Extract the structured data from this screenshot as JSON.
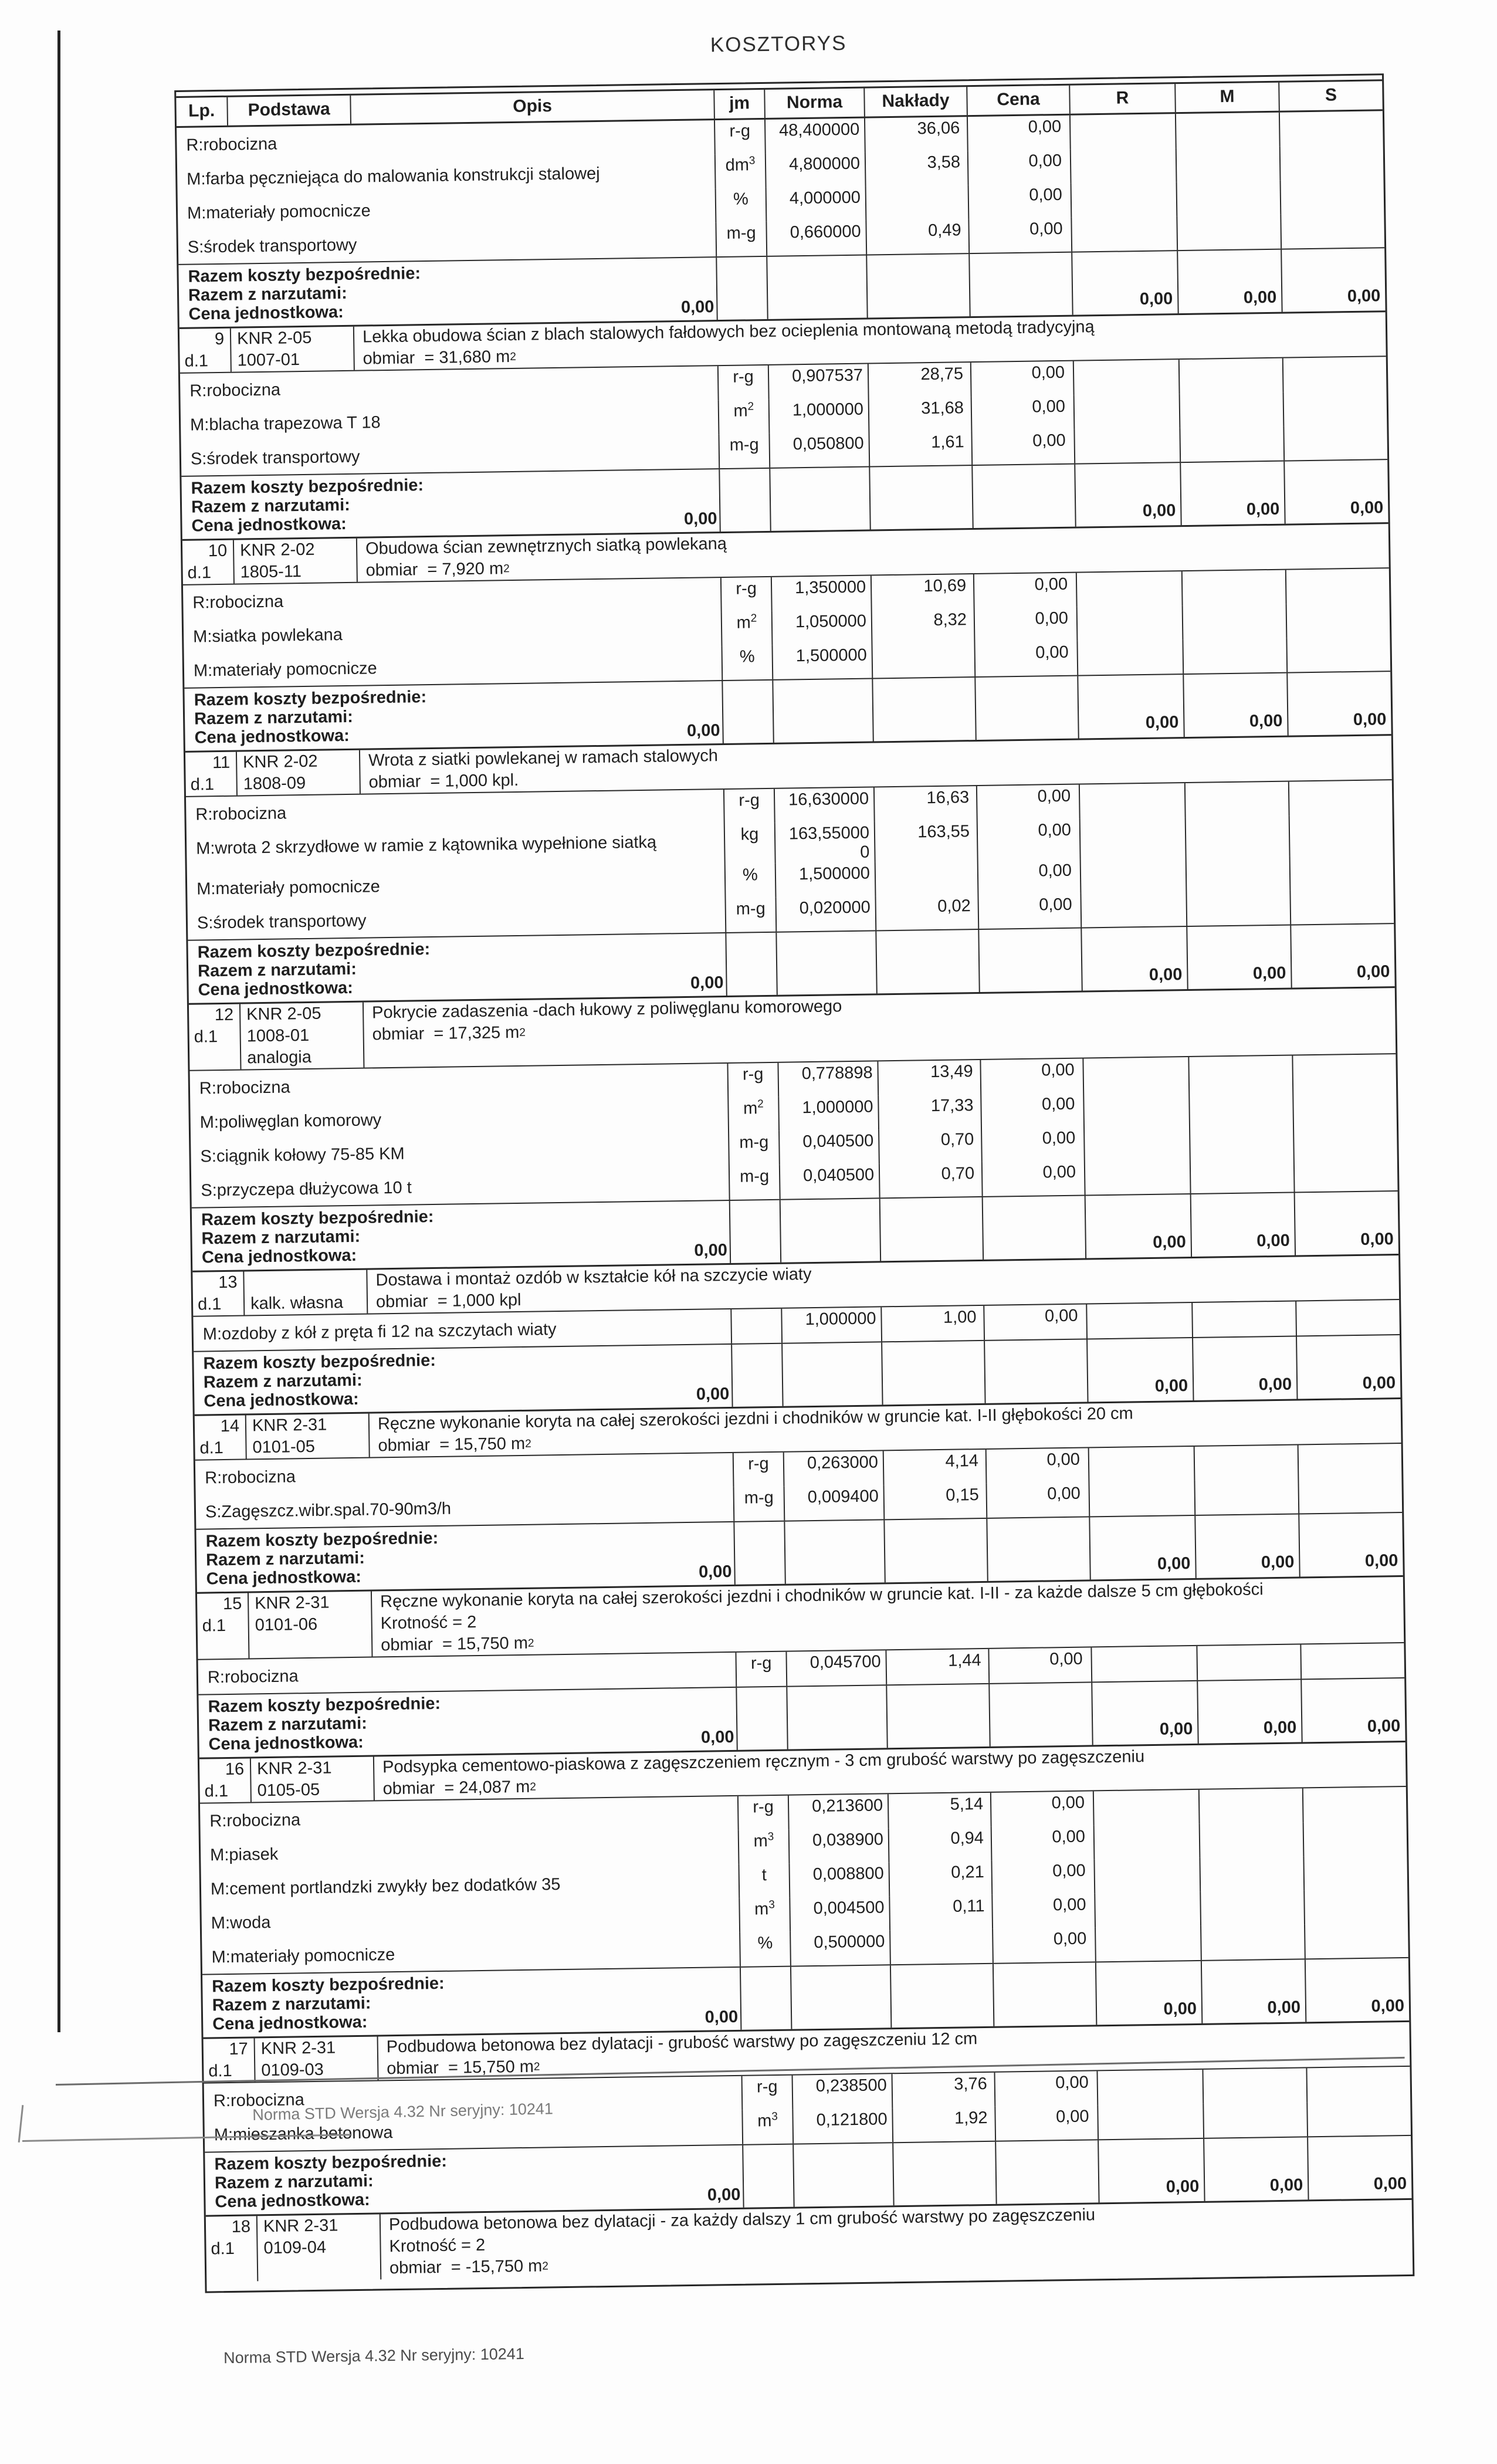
{
  "page": {
    "title": "KOSZTORYS",
    "footer": "Norma STD Wersja 4.32 Nr seryjny: 10241",
    "footer2": "Norma STD Wersja 4.32 Nr seryjny: 10241"
  },
  "table": {
    "columns": [
      "Lp.",
      "Podstawa",
      "Opis",
      "jm",
      "Norma",
      "Nakłady",
      "Cena",
      "R",
      "M",
      "S"
    ],
    "razem_labels": {
      "line1": "Razem koszty bezpośrednie:",
      "line2": "Razem z narzutami:",
      "line3": "Cena jednostkowa:"
    },
    "sections": [
      {
        "components": [
          {
            "name": "R:robocizna",
            "jm": "r-g",
            "norma": "48,400000",
            "naklady": "36,06",
            "cena": "0,00"
          },
          {
            "name": "M:farba pęczniejąca do malowania konstrukcji stalowej",
            "jm": "dm3",
            "norma": "4,800000",
            "naklady": "3,58",
            "cena": "0,00"
          },
          {
            "name": "M:materiały pomocnicze",
            "jm": "%",
            "norma": "4,000000",
            "naklady": "",
            "cena": "0,00"
          },
          {
            "name": "S:środek transportowy",
            "jm": "m-g",
            "norma": "0,660000",
            "naklady": "0,49",
            "cena": "0,00"
          }
        ],
        "razem": {
          "cena": "0,00",
          "r": "0,00",
          "m": "0,00",
          "s": "0,00"
        }
      },
      {
        "lp": "9",
        "dl": "d.1",
        "podstawa": [
          "KNR 2-05",
          "1007-01"
        ],
        "desc": "Lekka obudowa ścian z blach stalowych fałdowych bez ocieplenia montowaną metodą tradycyjną",
        "obmiar": "obmiar  = 31,680 m2",
        "components": [
          {
            "name": "R:robocizna",
            "jm": "r-g",
            "norma": "0,907537",
            "naklady": "28,75",
            "cena": "0,00"
          },
          {
            "name": "M:blacha trapezowa T 18",
            "jm": "m2",
            "norma": "1,000000",
            "naklady": "31,68",
            "cena": "0,00"
          },
          {
            "name": "S:środek transportowy",
            "jm": "m-g",
            "norma": "0,050800",
            "naklady": "1,61",
            "cena": "0,00"
          }
        ],
        "razem": {
          "cena": "0,00",
          "r": "0,00",
          "m": "0,00",
          "s": "0,00"
        }
      },
      {
        "lp": "10",
        "dl": "d.1",
        "podstawa": [
          "KNR 2-02",
          "1805-11"
        ],
        "desc": "Obudowa ścian zewnętrznych siatką powlekaną",
        "obmiar": "obmiar  = 7,920 m2",
        "components": [
          {
            "name": "R:robocizna",
            "jm": "r-g",
            "norma": "1,350000",
            "naklady": "10,69",
            "cena": "0,00"
          },
          {
            "name": "M:siatka powlekana",
            "jm": "m2",
            "norma": "1,050000",
            "naklady": "8,32",
            "cena": "0,00"
          },
          {
            "name": "M:materiały pomocnicze",
            "jm": "%",
            "norma": "1,500000",
            "naklady": "",
            "cena": "0,00"
          }
        ],
        "razem": {
          "cena": "0,00",
          "r": "0,00",
          "m": "0,00",
          "s": "0,00"
        }
      },
      {
        "lp": "11",
        "dl": "d.1",
        "podstawa": [
          "KNR 2-02",
          "1808-09"
        ],
        "desc": "Wrota z siatki powlekanej w ramach stalowych",
        "obmiar": "obmiar  = 1,000 kpl.",
        "components": [
          {
            "name": "R:robocizna",
            "jm": "r-g",
            "norma": "16,630000",
            "naklady": "16,63",
            "cena": "0,00"
          },
          {
            "name": "M:wrota 2 skrzydłowe w ramie z kątownika wypełnione siatką",
            "jm": "kg",
            "norma": "163,55000\n0",
            "naklady": "163,55",
            "cena": "0,00"
          },
          {
            "name": "M:materiały pomocnicze",
            "jm": "%",
            "norma": "1,500000",
            "naklady": "",
            "cena": "0,00"
          },
          {
            "name": "S:środek transportowy",
            "jm": "m-g",
            "norma": "0,020000",
            "naklady": "0,02",
            "cena": "0,00"
          }
        ],
        "razem": {
          "cena": "0,00",
          "r": "0,00",
          "m": "0,00",
          "s": "0,00"
        }
      },
      {
        "lp": "12",
        "dl": "d.1",
        "podstawa": [
          "KNR 2-05",
          "1008-01",
          "analogia"
        ],
        "desc": "Pokrycie zadaszenia -dach łukowy z poliwęglanu komorowego",
        "obmiar": "obmiar  = 17,325 m2",
        "components": [
          {
            "name": "R:robocizna",
            "jm": "r-g",
            "norma": "0,778898",
            "naklady": "13,49",
            "cena": "0,00"
          },
          {
            "name": "M:poliwęglan komorowy",
            "jm": "m2",
            "norma": "1,000000",
            "naklady": "17,33",
            "cena": "0,00"
          },
          {
            "name": "S:ciągnik kołowy 75-85 KM",
            "jm": "m-g",
            "norma": "0,040500",
            "naklady": "0,70",
            "cena": "0,00"
          },
          {
            "name": "S:przyczepa dłużycowa 10 t",
            "jm": "m-g",
            "norma": "0,040500",
            "naklady": "0,70",
            "cena": "0,00"
          }
        ],
        "razem": {
          "cena": "0,00",
          "r": "0,00",
          "m": "0,00",
          "s": "0,00"
        }
      },
      {
        "lp": "13",
        "dl": "d.1",
        "podstawa": [
          "",
          "kalk. własna"
        ],
        "desc": "Dostawa i montaż ozdób w kształcie kół na szczycie wiaty",
        "obmiar": "obmiar  = 1,000 kpl",
        "components": [
          {
            "name": "M:ozdoby z kół z pręta fi 12 na szczytach wiaty",
            "jm": "",
            "norma": "1,000000",
            "naklady": "1,00",
            "cena": "0,00"
          }
        ],
        "razem": {
          "cena": "0,00",
          "r": "0,00",
          "m": "0,00",
          "s": "0,00"
        }
      },
      {
        "lp": "14",
        "dl": "d.1",
        "podstawa": [
          "KNR 2-31",
          "0101-05"
        ],
        "desc": "Ręczne wykonanie koryta na całej szerokości jezdni i chodników w gruncie kat. I-II głębokości 20 cm",
        "obmiar": "obmiar  = 15,750 m2",
        "components": [
          {
            "name": "R:robocizna",
            "jm": "r-g",
            "norma": "0,263000",
            "naklady": "4,14",
            "cena": "0,00"
          },
          {
            "name": "S:Zagęszcz.wibr.spal.70-90m3/h",
            "jm": "m-g",
            "norma": "0,009400",
            "naklady": "0,15",
            "cena": "0,00"
          }
        ],
        "razem": {
          "cena": "0,00",
          "r": "0,00",
          "m": "0,00",
          "s": "0,00"
        }
      },
      {
        "lp": "15",
        "dl": "d.1",
        "podstawa": [
          "KNR 2-31",
          "0101-06"
        ],
        "desc": "Ręczne wykonanie koryta na całej szerokości jezdni i chodników w gruncie kat. I-II - za każde dalsze 5 cm głębokości",
        "krotnosc": "Krotność = 2",
        "obmiar": "obmiar  = 15,750 m2",
        "components": [
          {
            "name": "R:robocizna",
            "jm": "r-g",
            "norma": "0,045700",
            "naklady": "1,44",
            "cena": "0,00"
          }
        ],
        "razem": {
          "cena": "0,00",
          "r": "0,00",
          "m": "0,00",
          "s": "0,00"
        }
      },
      {
        "lp": "16",
        "dl": "d.1",
        "podstawa": [
          "KNR 2-31",
          "0105-05"
        ],
        "desc": "Podsypka cementowo-piaskowa z zagęszczeniem ręcznym - 3 cm grubość warstwy po zagęszczeniu",
        "obmiar": "obmiar  = 24,087 m2",
        "components": [
          {
            "name": "R:robocizna",
            "jm": "r-g",
            "norma": "0,213600",
            "naklady": "5,14",
            "cena": "0,00"
          },
          {
            "name": "M:piasek",
            "jm": "m3",
            "norma": "0,038900",
            "naklady": "0,94",
            "cena": "0,00"
          },
          {
            "name": "M:cement portlandzki zwykły bez dodatków 35",
            "jm": "t",
            "norma": "0,008800",
            "naklady": "0,21",
            "cena": "0,00"
          },
          {
            "name": "M:woda",
            "jm": "m3",
            "norma": "0,004500",
            "naklady": "0,11",
            "cena": "0,00"
          },
          {
            "name": "M:materiały pomocnicze",
            "jm": "%",
            "norma": "0,500000",
            "naklady": "",
            "cena": "0,00"
          }
        ],
        "razem": {
          "cena": "0,00",
          "r": "0,00",
          "m": "0,00",
          "s": "0,00"
        }
      },
      {
        "lp": "17",
        "dl": "d.1",
        "podstawa": [
          "KNR 2-31",
          "0109-03"
        ],
        "desc": "Podbudowa betonowa bez dylatacji - grubość warstwy po zagęszczeniu 12 cm",
        "obmiar": "obmiar  = 15,750 m2",
        "components": [
          {
            "name": "R:robocizna",
            "jm": "r-g",
            "norma": "0,238500",
            "naklady": "3,76",
            "cena": "0,00"
          },
          {
            "name": "M:mieszanka betonowa",
            "jm": "m3",
            "norma": "0,121800",
            "naklady": "1,92",
            "cena": "0,00"
          }
        ],
        "razem": {
          "cena": "0,00",
          "r": "0,00",
          "m": "0,00",
          "s": "0,00"
        }
      },
      {
        "lp": "18",
        "dl": "d.1",
        "podstawa": [
          "KNR 2-31",
          "0109-04"
        ],
        "desc": "Podbudowa betonowa bez dylatacji - za każdy dalszy 1 cm grubość warstwy po zagęszczeniu",
        "krotnosc": "Krotność = 2",
        "obmiar": "obmiar  = -15,750 m2",
        "components": []
      }
    ]
  }
}
